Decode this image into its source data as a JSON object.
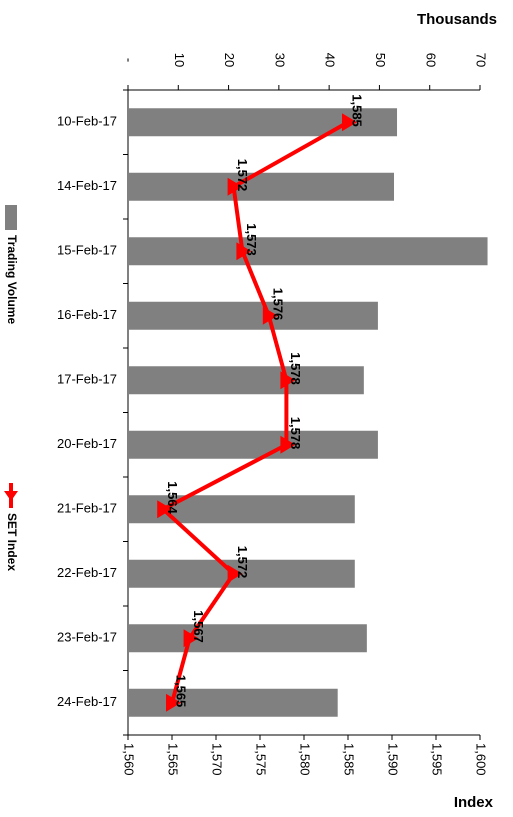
{
  "chart_data": {
    "type": "bar-line",
    "y_title": "Thousands",
    "y2_title": "Index",
    "categories": [
      "10-Feb-17",
      "14-Feb-17",
      "15-Feb-17",
      "16-Feb-17",
      "17-Feb-17",
      "20-Feb-17",
      "21-Feb-17",
      "22-Feb-17",
      "23-Feb-17",
      "24-Feb-17"
    ],
    "series": [
      {
        "name": "Trading Volume",
        "type": "bar",
        "color": "#808080",
        "values": [
          53.5,
          52.9,
          71.5,
          49.7,
          46.9,
          49.7,
          45.1,
          45.1,
          47.5,
          41.7
        ]
      },
      {
        "name": "SET Index",
        "type": "line",
        "axis": "y2",
        "color": "#ff0000",
        "values": [
          1585,
          1572,
          1573,
          1576,
          1578,
          1578,
          1564,
          1572,
          1567,
          1565
        ],
        "value_labels": [
          "1,585",
          "1,572",
          "1,573",
          "1,576",
          "1,578",
          "1,578",
          "1,564",
          "1,572",
          "1,567",
          "1,565"
        ]
      }
    ],
    "ylim": [
      0,
      70
    ],
    "yticks": [
      {
        "value": 0,
        "label": "-"
      },
      10,
      20,
      30,
      40,
      50,
      60,
      70
    ],
    "y2lim": [
      1560,
      1600
    ],
    "y2ticks": [
      {
        "value": 1560,
        "label": "1,560"
      },
      {
        "value": 1565,
        "label": "1,565"
      },
      {
        "value": 1570,
        "label": "1,570"
      },
      {
        "value": 1575,
        "label": "1,575"
      },
      {
        "value": 1580,
        "label": "1,580"
      },
      {
        "value": 1585,
        "label": "1,585"
      },
      {
        "value": 1590,
        "label": "1,590"
      },
      {
        "value": 1595,
        "label": "1,595"
      },
      {
        "value": 1600,
        "label": "1,600"
      }
    ]
  }
}
